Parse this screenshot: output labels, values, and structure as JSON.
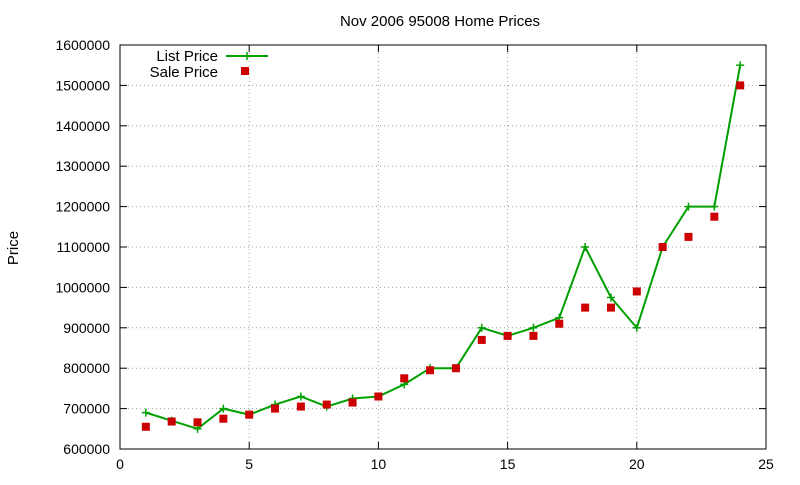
{
  "chart_data": {
    "type": "line",
    "title": "Nov 2006 95008 Home Prices",
    "xlabel": "",
    "ylabel": "Price",
    "xlim": [
      0,
      25
    ],
    "ylim": [
      600000,
      1600000
    ],
    "xticks": [
      0,
      5,
      10,
      15,
      20,
      25
    ],
    "yticks": [
      600000,
      700000,
      800000,
      900000,
      1000000,
      1100000,
      1200000,
      1300000,
      1400000,
      1500000,
      1600000
    ],
    "grid": true,
    "legend_position": "top-left",
    "series": [
      {
        "name": "List Price",
        "style": "line+cross",
        "color": "#00a000",
        "x": [
          1,
          2,
          3,
          4,
          5,
          6,
          7,
          8,
          9,
          10,
          11,
          12,
          13,
          14,
          15,
          16,
          17,
          18,
          19,
          20,
          21,
          22,
          23,
          24
        ],
        "y": [
          690000,
          670000,
          650000,
          700000,
          685000,
          710000,
          730000,
          705000,
          725000,
          730000,
          760000,
          800000,
          800000,
          900000,
          880000,
          900000,
          925000,
          1100000,
          975000,
          900000,
          1100000,
          1200000,
          1200000,
          1550000
        ]
      },
      {
        "name": "Sale Price",
        "style": "square-markers",
        "color": "#cc0000",
        "x": [
          1,
          2,
          3,
          4,
          5,
          6,
          7,
          8,
          9,
          10,
          11,
          12,
          13,
          14,
          15,
          16,
          17,
          18,
          19,
          20,
          21,
          22,
          23,
          24
        ],
        "y": [
          655000,
          668000,
          666000,
          675000,
          685000,
          700000,
          705000,
          710000,
          715000,
          730000,
          775000,
          795000,
          800000,
          870000,
          880000,
          880000,
          910000,
          950000,
          950000,
          990000,
          1100000,
          1125000,
          1175000,
          1500000
        ]
      }
    ]
  }
}
